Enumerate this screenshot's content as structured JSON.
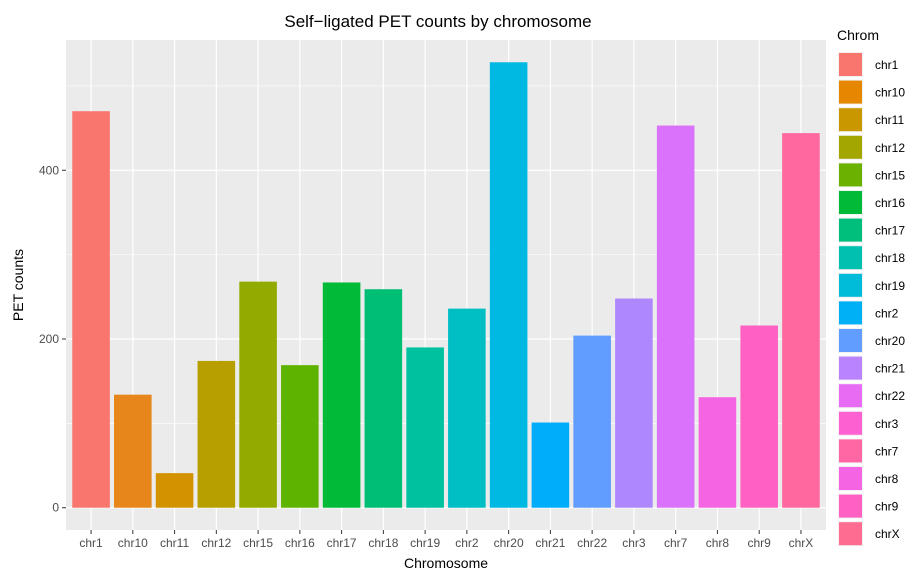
{
  "chart_data": {
    "type": "bar",
    "title": "Self−ligated PET counts by chromosome",
    "xlabel": "Chromosome",
    "ylabel": "PET counts",
    "categories": [
      "chr1",
      "chr10",
      "chr11",
      "chr12",
      "chr15",
      "chr16",
      "chr17",
      "chr18",
      "chr19",
      "chr2",
      "chr20",
      "chr21",
      "chr22",
      "chr3",
      "chr7",
      "chr8",
      "chr9",
      "chrX"
    ],
    "values": [
      470,
      134,
      41,
      174,
      268,
      169,
      267,
      259,
      190,
      236,
      528,
      101,
      204,
      248,
      453,
      131,
      216,
      444
    ],
    "colors": [
      "#F8766D",
      "#E58700",
      "#C99800",
      "#A3A500",
      "#6BB100",
      "#00BA38",
      "#00BF7D",
      "#00C0AF",
      "#00BCD8",
      "#00B0F6",
      "#619CFF",
      "#B983FF",
      "#E76BF3",
      "#FD61D1",
      "#FF67A4",
      "#F564E3",
      "#FF61C3",
      "#FF6C91"
    ],
    "bar_colors": [
      "#F8766D",
      "#E7861B",
      "#D39200",
      "#B79F00",
      "#93AA00",
      "#5EB300",
      "#00BA38",
      "#00BF74",
      "#00C19F",
      "#00BFC4",
      "#00B9E3",
      "#00ADFA",
      "#619CFF",
      "#AE87FF",
      "#DB72FB",
      "#F564E3",
      "#FF61C3",
      "#FF689F"
    ],
    "yticks": [
      0,
      200,
      400
    ],
    "ylim": [
      -26.4,
      554.4
    ],
    "grid": true,
    "panel_background": "#EBEBEB",
    "legend": {
      "title": "Chrom",
      "placement": "right",
      "entries": [
        "chr1",
        "chr10",
        "chr11",
        "chr12",
        "chr15",
        "chr16",
        "chr17",
        "chr18",
        "chr19",
        "chr2",
        "chr20",
        "chr21",
        "chr22",
        "chr3",
        "chr7",
        "chr8",
        "chr9",
        "chrX"
      ]
    }
  }
}
